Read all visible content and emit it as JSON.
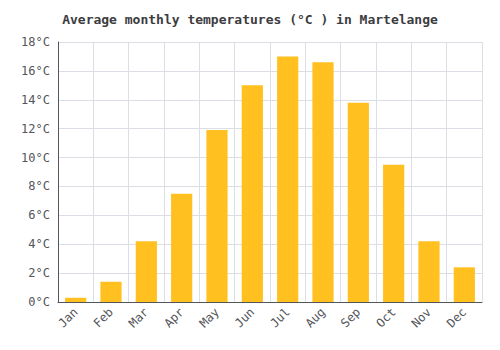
{
  "chart_data": {
    "type": "bar",
    "title": "Average monthly temperatures (°C ) in Martelange",
    "categories": [
      "Jan",
      "Feb",
      "Mar",
      "Apr",
      "May",
      "Jun",
      "Jul",
      "Aug",
      "Sep",
      "Oct",
      "Nov",
      "Dec"
    ],
    "values": [
      0.3,
      1.4,
      4.2,
      7.5,
      11.9,
      15.0,
      17.0,
      16.6,
      13.8,
      9.5,
      4.2,
      2.4
    ],
    "color": "#FFC020",
    "ylim": [
      0,
      18
    ],
    "yticks": [
      {
        "value": 0,
        "label": "0°C"
      },
      {
        "value": 2,
        "label": "2°C"
      },
      {
        "value": 4,
        "label": "4°C"
      },
      {
        "value": 6,
        "label": "6°C"
      },
      {
        "value": 8,
        "label": "8°C"
      },
      {
        "value": 10,
        "label": "10°C"
      },
      {
        "value": 12,
        "label": "12°C"
      },
      {
        "value": 14,
        "label": "14°C"
      },
      {
        "value": 16,
        "label": "16°C"
      },
      {
        "value": 18,
        "label": "18°C"
      }
    ],
    "grid": true
  }
}
